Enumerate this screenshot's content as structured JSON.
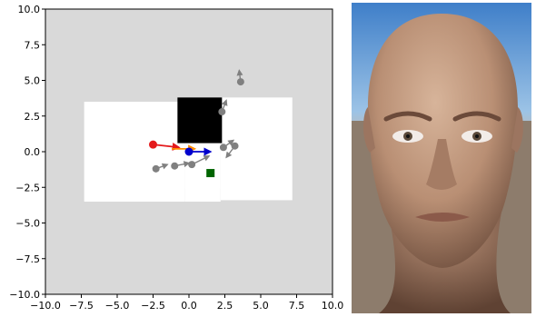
{
  "chart_data": {
    "type": "scatter",
    "xlim": [
      -10.0,
      10.0
    ],
    "ylim": [
      -10.0,
      10.0
    ],
    "x_ticks": [
      "−10.0",
      "−7.5",
      "−5.0",
      "−2.5",
      "0.0",
      "2.5",
      "5.0",
      "7.5",
      "10.0"
    ],
    "y_ticks": [
      "10.0",
      "7.5",
      "5.0",
      "2.5",
      "0.0",
      "−2.5",
      "−5.0",
      "−7.5",
      "−10.0"
    ],
    "background_color": "#d9d9d9",
    "explored_regions": [
      {
        "x0": -7.0,
        "y0": -2.4,
        "x1": -4.0,
        "y1": 3.0
      },
      {
        "x0": -4.0,
        "y0": -2.6,
        "x1": 4.0,
        "y1": 3.0
      },
      {
        "x0": 4.0,
        "y0": -2.4,
        "x1": 5.0,
        "y1": 1.8
      }
    ],
    "free_space": [
      {
        "x0": -7.3,
        "y0": -3.5,
        "x1": -0.3,
        "y1": 3.5
      },
      {
        "x0": -0.3,
        "y0": -3.5,
        "x1": 2.2,
        "y1": 3.0
      },
      {
        "x0": 2.2,
        "y0": -3.4,
        "x1": 7.2,
        "y1": 3.8
      }
    ],
    "obstacle": {
      "x0": -0.8,
      "y0": 0.6,
      "x1": 2.3,
      "y1": 3.8
    },
    "goal": {
      "x": 1.5,
      "y": -1.5,
      "color": "#006400"
    },
    "agents": [
      {
        "x": -2.5,
        "y": 0.5,
        "dx": 1.8,
        "dy": -0.2,
        "color": "#e41a1c"
      },
      {
        "x": -1.2,
        "y": 0.2,
        "dx": 1.6,
        "dy": 0.0,
        "color": "#ff8c00"
      },
      {
        "x": 0.0,
        "y": 0.0,
        "dx": 1.5,
        "dy": 0.0,
        "color": "#0000cd"
      }
    ],
    "others": [
      {
        "x": -2.3,
        "y": -1.2,
        "dx": 0.8,
        "dy": 0.3
      },
      {
        "x": -1.0,
        "y": -1.0,
        "dx": 1.0,
        "dy": 0.2
      },
      {
        "x": 0.2,
        "y": -0.9,
        "dx": 1.2,
        "dy": 0.6
      },
      {
        "x": 2.4,
        "y": 0.3,
        "dx": 0.7,
        "dy": 0.5
      },
      {
        "x": 3.2,
        "y": 0.4,
        "dx": -0.6,
        "dy": -0.8
      },
      {
        "x": 2.3,
        "y": 2.8,
        "dx": 0.3,
        "dy": 0.8
      },
      {
        "x": 3.6,
        "y": 4.9,
        "dx": -0.1,
        "dy": 0.8
      }
    ],
    "other_color": "#808080"
  }
}
